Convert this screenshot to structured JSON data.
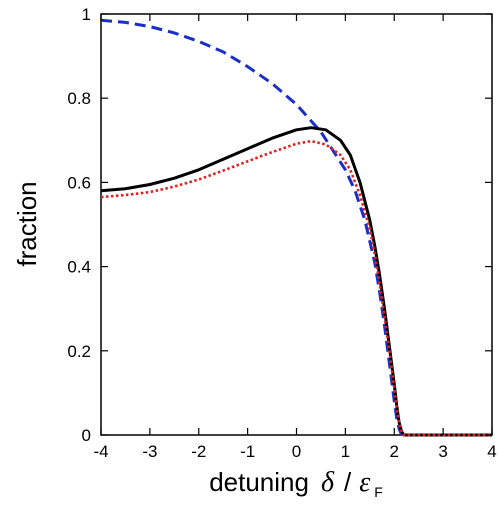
{
  "chart_data": {
    "type": "line",
    "xlim": [
      -4,
      4
    ],
    "ylim": [
      0,
      1
    ],
    "xticks": [
      -4,
      -3,
      -2,
      -1,
      0,
      1,
      2,
      3,
      4
    ],
    "yticks": [
      0,
      0.2,
      0.4,
      0.6,
      0.8,
      1
    ],
    "xtick_labels": [
      "-4",
      "-3",
      "-2",
      "-1",
      "0",
      "1",
      "2",
      "3",
      "4"
    ],
    "ytick_labels": [
      "0",
      "0.2",
      "0.4",
      "0.6",
      "0.8",
      "1"
    ],
    "xlabel": {
      "main": "detuning",
      "delta": "δ",
      "slash": "/",
      "eps": "ε",
      "sub": "F"
    },
    "ylabel": "fraction",
    "grid": false,
    "legend": "none",
    "series": [
      {
        "style": "dashed",
        "color": "#1a2fc8",
        "x": [
          -4,
          -3.5,
          -3,
          -2.5,
          -2,
          -1.5,
          -1,
          -0.5,
          0,
          0.5,
          1,
          1.2,
          1.4,
          1.6,
          1.7,
          1.8,
          1.9,
          2.0,
          2.05,
          2.1,
          2.15
        ],
        "y": [
          0.985,
          0.98,
          0.97,
          0.955,
          0.935,
          0.91,
          0.875,
          0.835,
          0.785,
          0.72,
          0.63,
          0.58,
          0.51,
          0.41,
          0.34,
          0.26,
          0.17,
          0.08,
          0.04,
          0.015,
          0
        ]
      },
      {
        "style": "solid",
        "color": "#000000",
        "x": [
          -4,
          -3.5,
          -3,
          -2.5,
          -2,
          -1.5,
          -1,
          -0.5,
          0,
          0.3,
          0.6,
          0.9,
          1.1,
          1.3,
          1.5,
          1.6,
          1.7,
          1.8,
          1.9,
          2.0,
          2.05,
          2.1,
          2.15,
          2.2,
          2.5,
          3,
          3.5,
          4
        ],
        "y": [
          0.58,
          0.585,
          0.595,
          0.61,
          0.63,
          0.655,
          0.68,
          0.705,
          0.725,
          0.73,
          0.725,
          0.7,
          0.665,
          0.6,
          0.51,
          0.45,
          0.38,
          0.3,
          0.21,
          0.12,
          0.07,
          0.03,
          0.008,
          0,
          0,
          0,
          0,
          0
        ]
      },
      {
        "style": "dotted",
        "color": "#e02020",
        "x": [
          -4,
          -3.5,
          -3,
          -2.5,
          -2,
          -1.5,
          -1,
          -0.5,
          0,
          0.3,
          0.6,
          0.9,
          1.1,
          1.3,
          1.5,
          1.6,
          1.7,
          1.8,
          1.9,
          2.0,
          2.05,
          2.1,
          2.15,
          2.2,
          2.5,
          3,
          3.5,
          4
        ],
        "y": [
          0.565,
          0.57,
          0.577,
          0.59,
          0.607,
          0.628,
          0.65,
          0.672,
          0.692,
          0.698,
          0.69,
          0.665,
          0.63,
          0.57,
          0.49,
          0.43,
          0.36,
          0.28,
          0.2,
          0.11,
          0.065,
          0.028,
          0.007,
          0,
          0,
          0,
          0,
          0
        ]
      }
    ]
  }
}
